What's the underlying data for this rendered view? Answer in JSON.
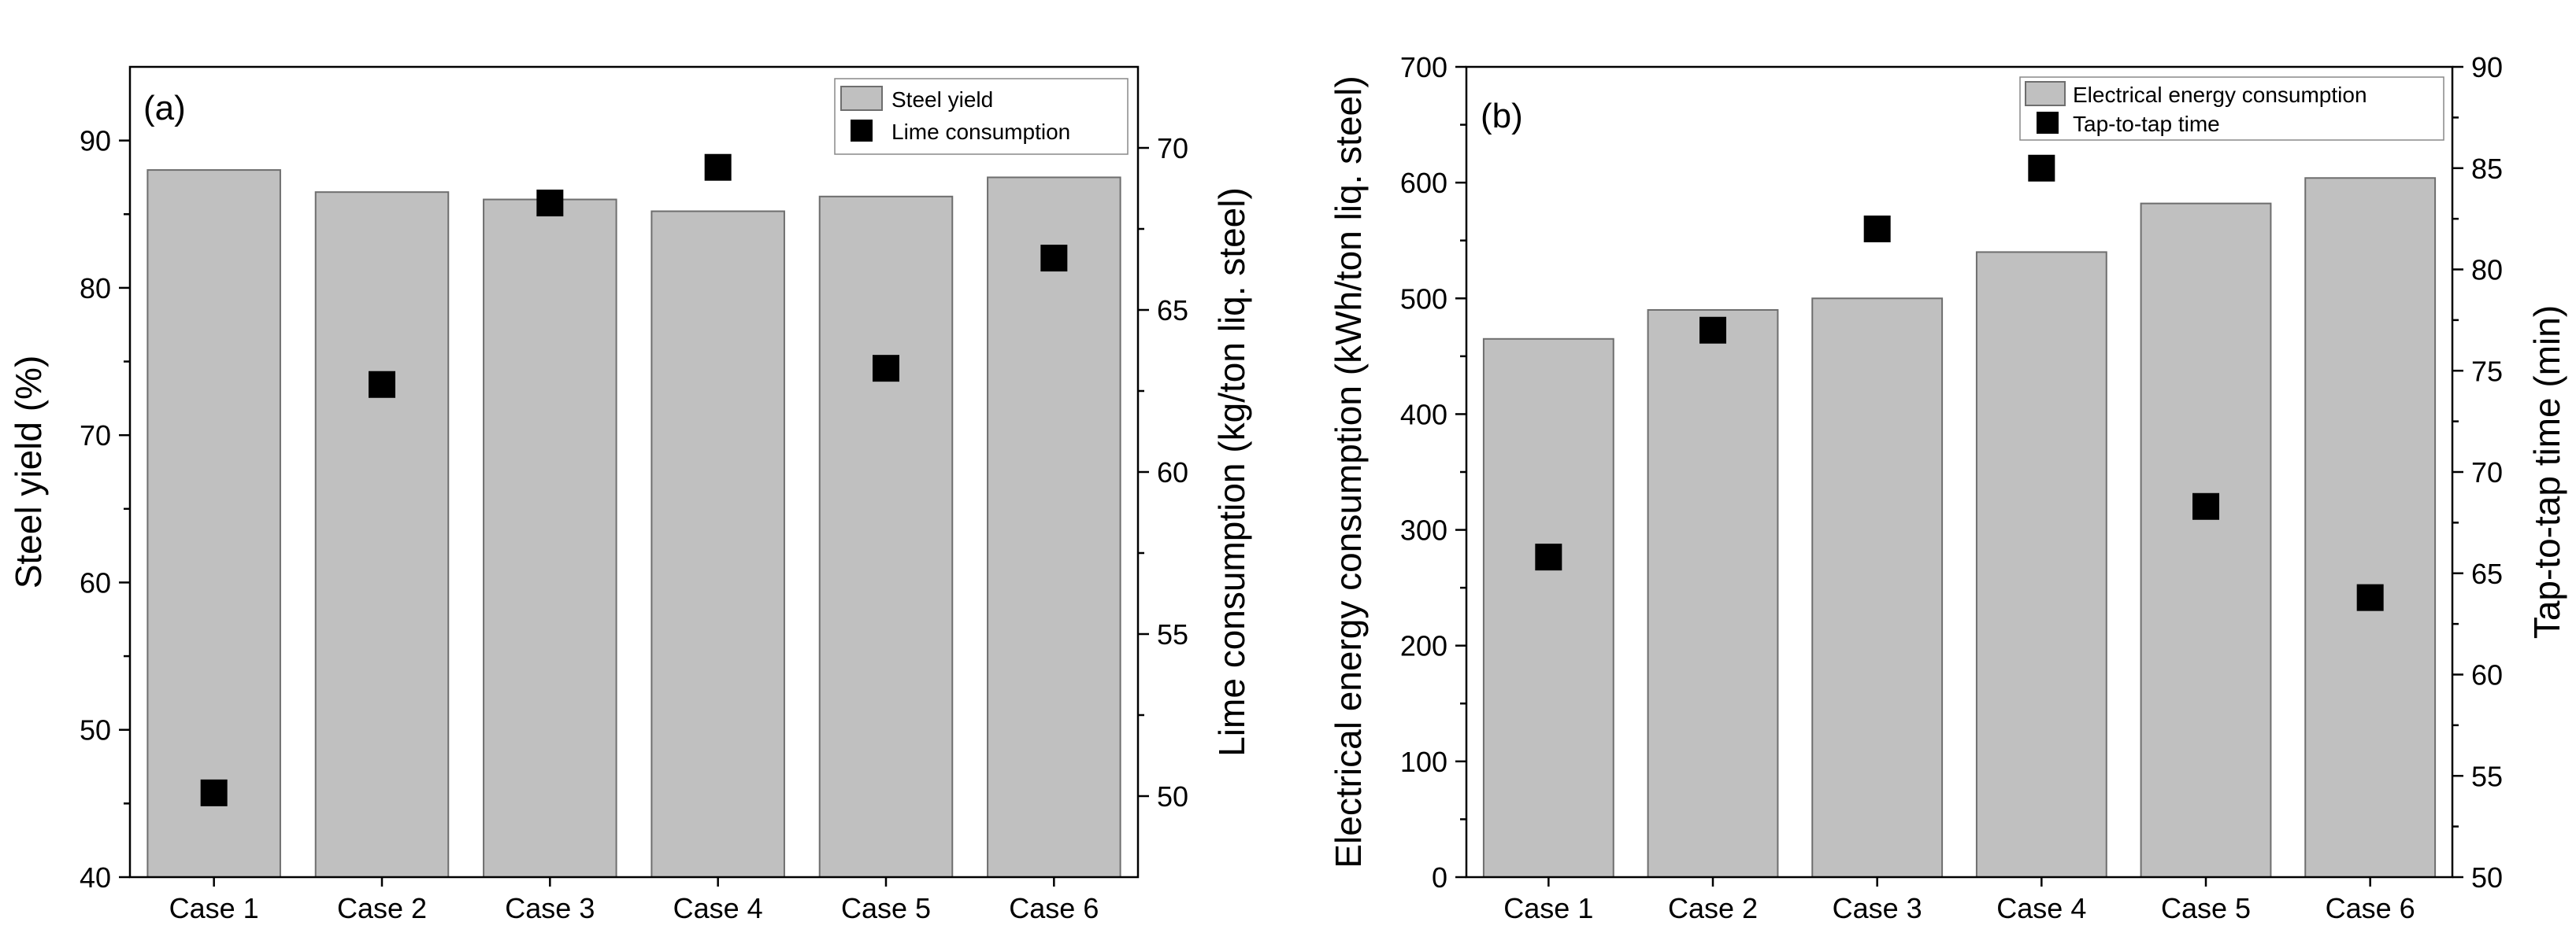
{
  "chart_data": [
    {
      "id": "a",
      "type": "bar",
      "panel_label": "(a)",
      "categories": [
        "Case 1",
        "Case 2",
        "Case 3",
        "Case 4",
        "Case 5",
        "Case 6"
      ],
      "series": [
        {
          "name": "Steel yield",
          "kind": "bar",
          "axis": "left",
          "values": [
            88.0,
            86.5,
            86.0,
            85.2,
            86.2,
            87.5
          ]
        },
        {
          "name": "Lime consumption",
          "kind": "scatter",
          "axis": "right",
          "values": [
            50.1,
            62.7,
            68.3,
            69.4,
            63.2,
            66.6
          ]
        }
      ],
      "ylabel": "Steel yield (%)",
      "ylim": [
        40,
        95
      ],
      "yticks": [
        40,
        50,
        60,
        70,
        80,
        90
      ],
      "y2label": "Lime consumption (kg/ton liq. steel)",
      "y2lim": [
        47.5,
        72.5
      ],
      "y2ticks": [
        50,
        55,
        60,
        65,
        70
      ],
      "legend_position": "top-right"
    },
    {
      "id": "b",
      "type": "bar",
      "panel_label": "(b)",
      "categories": [
        "Case 1",
        "Case 2",
        "Case 3",
        "Case 4",
        "Case 5",
        "Case 6"
      ],
      "series": [
        {
          "name": "Electrical energy consumption",
          "kind": "bar",
          "axis": "left",
          "values": [
            465,
            490,
            500,
            540,
            582,
            604
          ]
        },
        {
          "name": "Tap-to-tap time",
          "kind": "scatter",
          "axis": "right",
          "values": [
            65.8,
            77.0,
            82.0,
            85.0,
            68.3,
            63.8
          ]
        }
      ],
      "ylabel": "Electrical energy consumption (kWh/ton liq. steel)",
      "ylim": [
        0,
        700
      ],
      "yticks": [
        0,
        100,
        200,
        300,
        400,
        500,
        600,
        700
      ],
      "y2label": "Tap-to-tap time (min)",
      "y2lim": [
        50,
        90
      ],
      "y2ticks": [
        50,
        55,
        60,
        65,
        70,
        75,
        80,
        85,
        90
      ],
      "legend_position": "top-right"
    }
  ],
  "colors": {
    "bar_fill": "#c0c0c0",
    "bar_stroke": "#6e6e6e",
    "marker": "#000000",
    "axis": "#000000"
  }
}
